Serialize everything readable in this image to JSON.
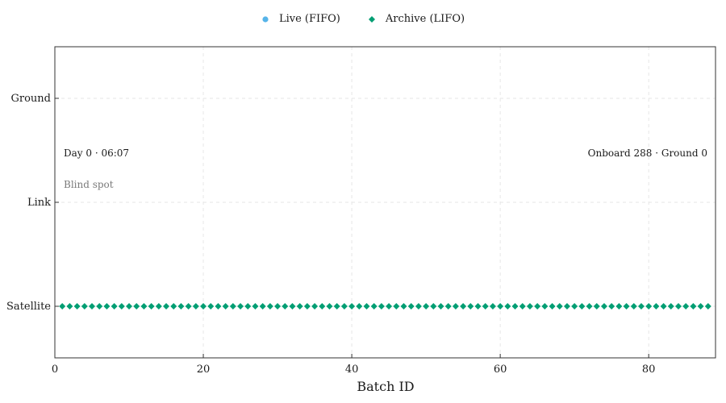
{
  "chart_data": {
    "type": "scatter",
    "xlabel": "Batch ID",
    "ylabel": "",
    "xlim": [
      0,
      89
    ],
    "x_ticks": [
      0,
      20,
      40,
      60,
      80
    ],
    "categories_y": [
      "Satellite",
      "Link",
      "Ground"
    ],
    "grid": true,
    "legend_position": "top-center",
    "series": [
      {
        "name": "Live (FIFO)",
        "marker": "circle",
        "color": "#56B4E9",
        "points": []
      },
      {
        "name": "Archive (LIFO)",
        "marker": "diamond",
        "color": "#009E73",
        "x_start": 1,
        "x_end": 88,
        "y_category": "Satellite"
      }
    ],
    "annotations": {
      "time": "Day 0 · 06:07",
      "status": "Blind spot",
      "counts": "Onboard 288 · Ground 0"
    }
  }
}
